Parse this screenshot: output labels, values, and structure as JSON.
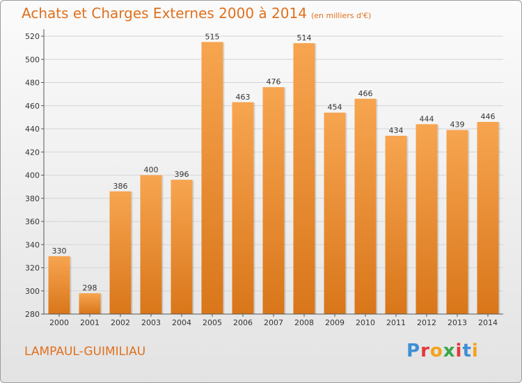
{
  "header": {
    "title": "Achats et Charges Externes 2000 à 2014",
    "subtitle": "(en milliers d'€)"
  },
  "footer": {
    "place": "LAMPAUL-GUIMILIAU",
    "logo": [
      "P",
      "r",
      "o",
      "x",
      "i",
      "t",
      "i"
    ]
  },
  "colors": {
    "bar_top": "#f7a550",
    "bar_bottom": "#d9761a",
    "text_accent": "#e0701c"
  },
  "chart_data": {
    "type": "bar",
    "title": "Achats et Charges Externes 2000 à 2014",
    "subtitle": "(en milliers d'€)",
    "categories": [
      "2000",
      "2001",
      "2002",
      "2003",
      "2004",
      "2005",
      "2006",
      "2007",
      "2008",
      "2009",
      "2010",
      "2011",
      "2012",
      "2013",
      "2014"
    ],
    "values": [
      330,
      298,
      386,
      400,
      396,
      515,
      463,
      476,
      514,
      454,
      466,
      434,
      444,
      439,
      446
    ],
    "ylim": [
      280,
      520
    ],
    "yticks": [
      280,
      300,
      320,
      340,
      360,
      380,
      400,
      420,
      440,
      460,
      480,
      500,
      520
    ],
    "grid": true,
    "legend": "none"
  }
}
